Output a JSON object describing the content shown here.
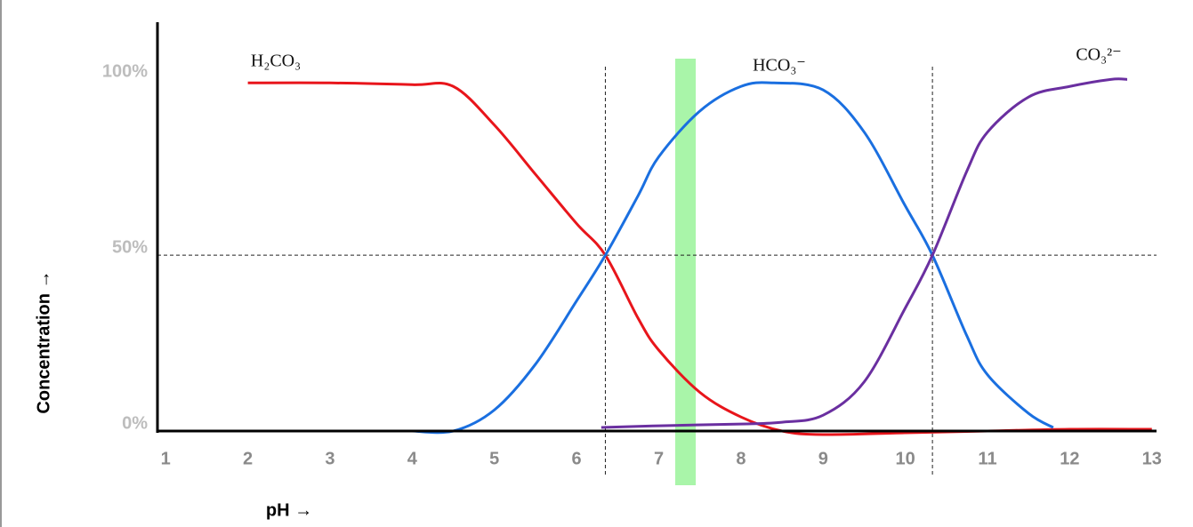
{
  "chart_data": {
    "type": "line",
    "x_label": "pH →",
    "y_label": "Concentration →",
    "xlim": [
      0.9,
      13.1
    ],
    "ylim": [
      0,
      115
    ],
    "xticks": [
      1,
      2,
      3,
      4,
      5,
      6,
      7,
      8,
      9,
      10,
      11,
      12,
      13
    ],
    "yticks": [
      {
        "value": 0,
        "label": "0%"
      },
      {
        "value": 50,
        "label": "50%"
      },
      {
        "value": 100,
        "label": "100%"
      }
    ],
    "reference_x": [
      6.35,
      10.33
    ],
    "reference_y": [
      50
    ],
    "highlight_band": {
      "range": [
        7.2,
        7.45
      ],
      "color": "#a9f5a9"
    },
    "series": [
      {
        "name": "H₂CO₃",
        "color": "#e8151b",
        "x": [
          2,
          3,
          4,
          4.5,
          5,
          5.5,
          6,
          6.35,
          6.75,
          7,
          7.5,
          8,
          8.5,
          9,
          10,
          11,
          12,
          13
        ],
        "values": [
          99,
          99,
          98.5,
          98,
          87,
          73,
          59,
          50,
          32,
          23,
          11,
          4,
          0,
          -1,
          -0.5,
          0,
          0.5,
          0.5
        ]
      },
      {
        "name": "HCO₃⁻",
        "color": "#1a6fe0",
        "x": [
          4,
          4.5,
          5,
          5.5,
          6,
          6.35,
          6.75,
          7,
          7.5,
          8,
          8.4,
          9,
          9.5,
          10,
          10.33,
          10.75,
          11,
          11.5,
          11.8
        ],
        "values": [
          0,
          0,
          6,
          19,
          37,
          50,
          67,
          78,
          91,
          98,
          99,
          97,
          85,
          64,
          50,
          27,
          16,
          5,
          1
        ]
      },
      {
        "name": "CO₃²⁻",
        "color": "#6a2fa0",
        "x": [
          6.3,
          7,
          8,
          8.5,
          9,
          9.5,
          10,
          10.33,
          10.75,
          11,
          11.5,
          12,
          12.5,
          12.7
        ],
        "values": [
          1,
          1.5,
          2,
          2.5,
          4.5,
          14,
          35,
          50,
          74,
          85,
          95,
          98,
          100,
          100
        ]
      }
    ]
  }
}
